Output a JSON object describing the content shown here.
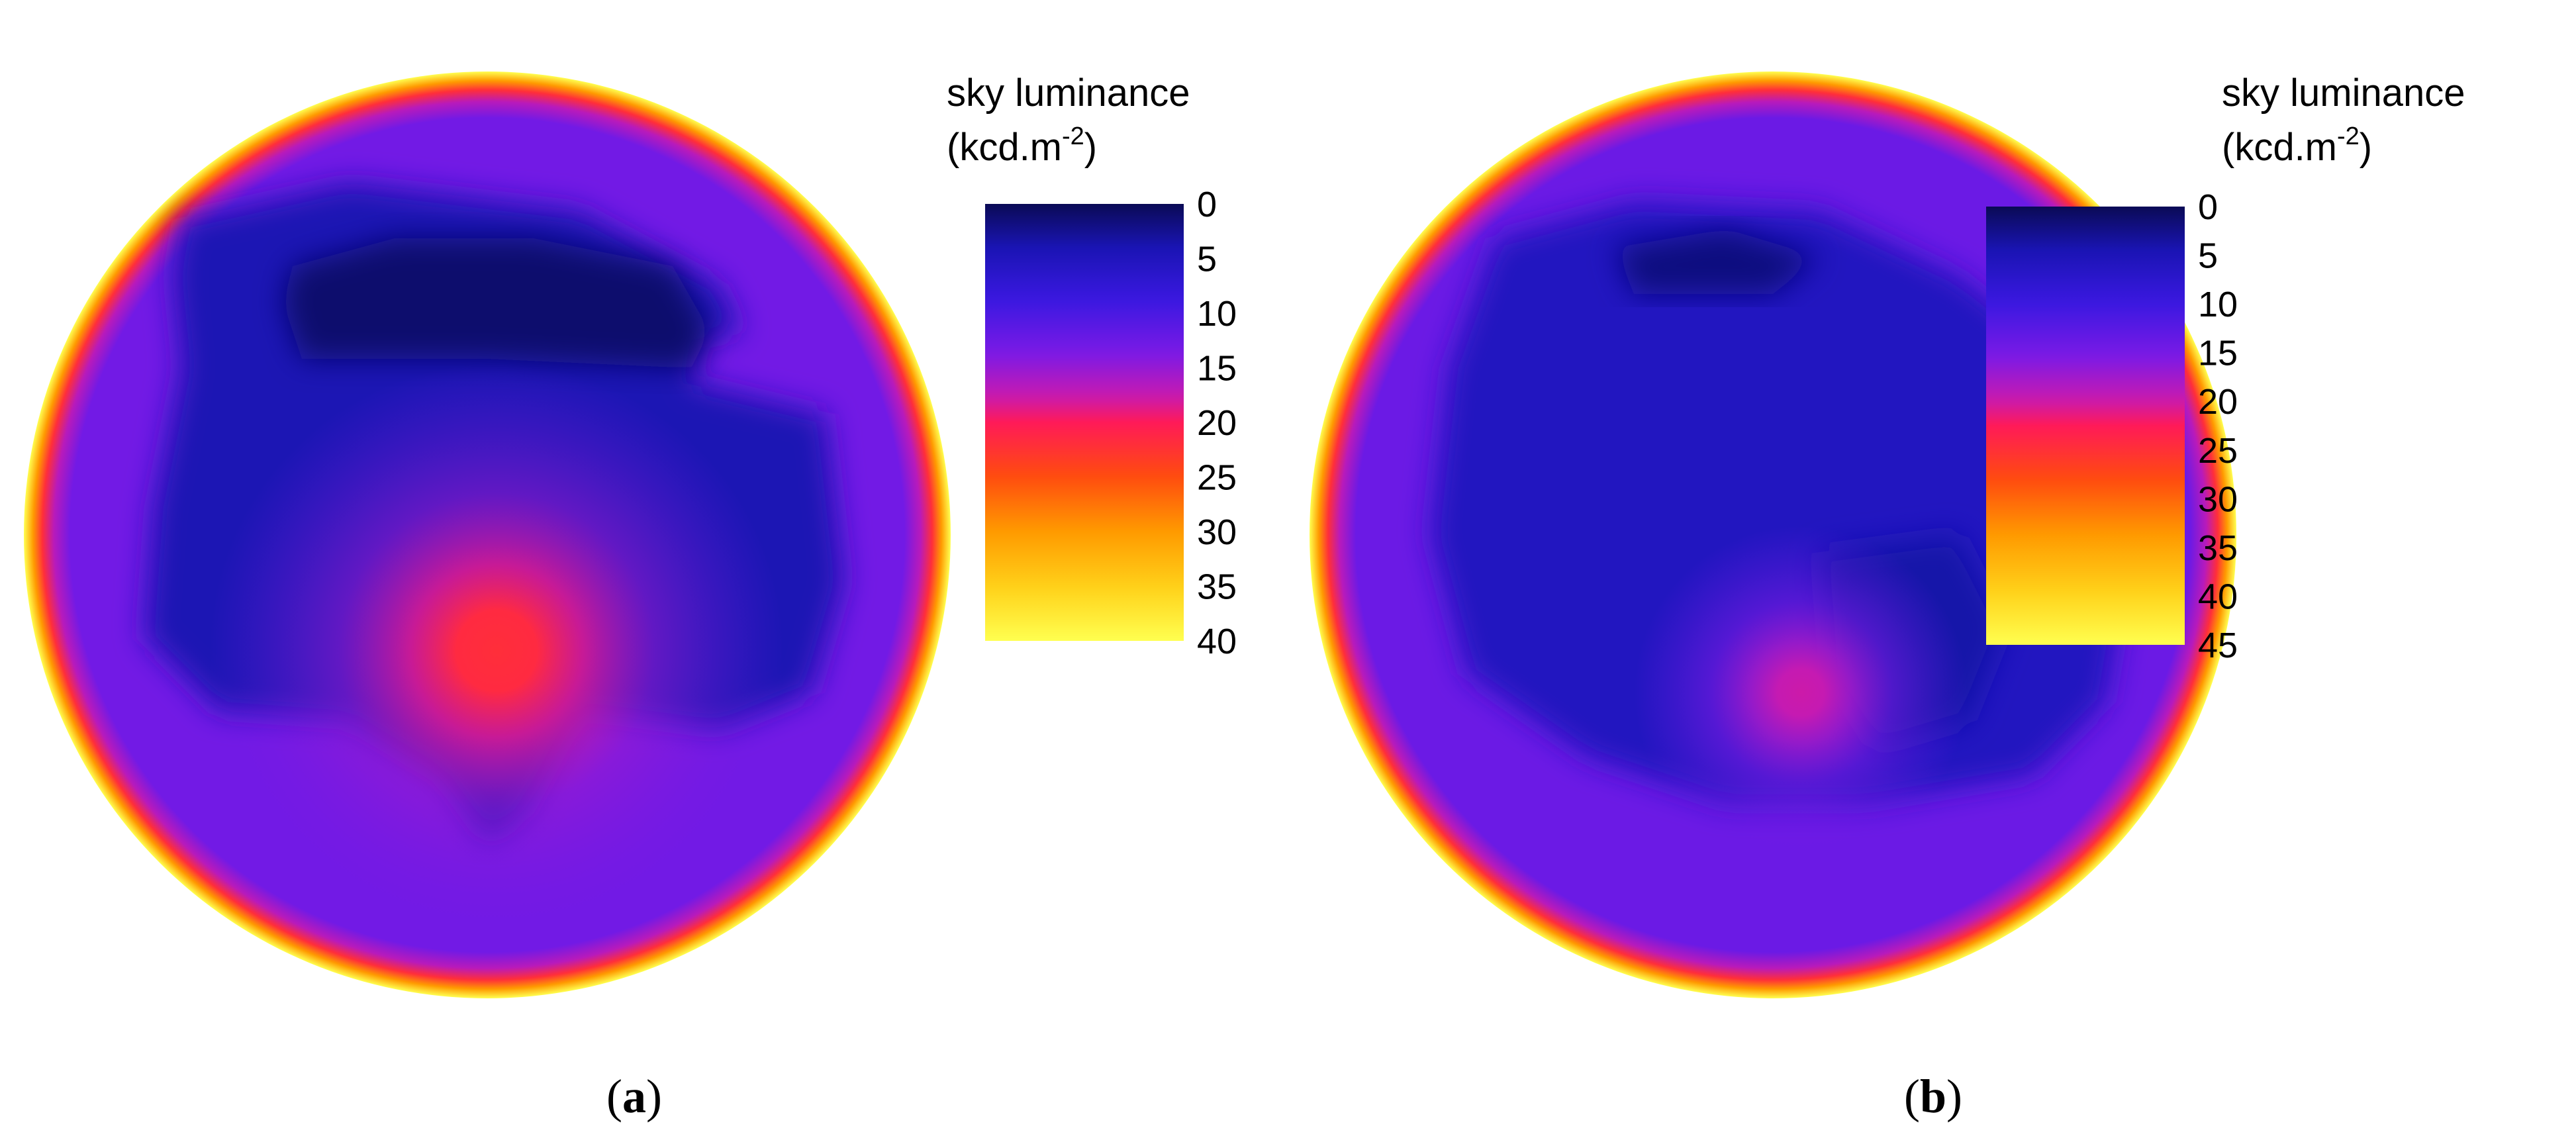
{
  "chart_data": [
    {
      "type": "heatmap",
      "panel_label": "a",
      "colorbar": {
        "title_line1": "sky luminance",
        "title_unit": "(kcd.m",
        "title_sup": "-2",
        "title_close": ")",
        "min": 0,
        "max": 40,
        "ticks": [
          "0",
          "5",
          "10",
          "15",
          "20",
          "25",
          "30",
          "35",
          "40"
        ]
      },
      "field": {
        "background_level": 13,
        "rim_level": 40,
        "dark_regions": [
          {
            "level": 4,
            "points": [
              [
                -0.66,
                -0.68
              ],
              [
                -0.3,
                -0.76
              ],
              [
                0.2,
                -0.7
              ],
              [
                0.5,
                -0.54
              ],
              [
                0.55,
                -0.44
              ],
              [
                0.46,
                -0.42
              ],
              [
                0.44,
                -0.33
              ],
              [
                0.73,
                -0.26
              ],
              [
                0.77,
                0.1
              ],
              [
                0.7,
                0.34
              ],
              [
                0.5,
                0.42
              ],
              [
                0.2,
                0.38
              ],
              [
                0.08,
                0.6
              ],
              [
                0.0,
                0.66
              ],
              [
                -0.1,
                0.52
              ],
              [
                -0.3,
                0.4
              ],
              [
                -0.58,
                0.38
              ],
              [
                -0.74,
                0.22
              ],
              [
                -0.72,
                -0.06
              ],
              [
                -0.66,
                -0.36
              ],
              [
                -0.68,
                -0.56
              ]
            ]
          },
          {
            "level": 1,
            "points": [
              [
                -0.42,
                -0.58
              ],
              [
                -0.2,
                -0.64
              ],
              [
                0.1,
                -0.64
              ],
              [
                0.4,
                -0.58
              ],
              [
                0.48,
                -0.44
              ],
              [
                0.44,
                -0.36
              ],
              [
                0.0,
                -0.38
              ],
              [
                -0.4,
                -0.38
              ],
              [
                -0.44,
                -0.5
              ]
            ]
          }
        ],
        "hotspot": {
          "cx": 0.02,
          "cy": 0.25,
          "radius": 0.62,
          "peak_level": 22
        }
      }
    },
    {
      "type": "heatmap",
      "panel_label": "b",
      "colorbar": {
        "title_line1": "sky luminance",
        "title_unit": "(kcd.m",
        "title_sup": "-2",
        "title_close": ")",
        "min": 0,
        "max": 45,
        "ticks": [
          "0",
          "5",
          "10",
          "15",
          "20",
          "25",
          "30",
          "35",
          "40",
          "45"
        ]
      },
      "field": {
        "background_level": 14,
        "rim_level": 45,
        "dark_regions": [
          {
            "level": 6,
            "points": [
              [
                -0.6,
                -0.64
              ],
              [
                -0.3,
                -0.72
              ],
              [
                0.1,
                -0.7
              ],
              [
                0.4,
                -0.56
              ],
              [
                0.68,
                -0.34
              ],
              [
                0.78,
                0.0
              ],
              [
                0.72,
                0.36
              ],
              [
                0.56,
                0.52
              ],
              [
                0.2,
                0.58
              ],
              [
                -0.1,
                0.58
              ],
              [
                -0.4,
                0.48
              ],
              [
                -0.66,
                0.3
              ],
              [
                -0.74,
                0.0
              ],
              [
                -0.7,
                -0.36
              ]
            ]
          },
          {
            "level": 2,
            "points": [
              [
                -0.34,
                -0.62
              ],
              [
                -0.1,
                -0.66
              ],
              [
                0.1,
                -0.6
              ],
              [
                0.0,
                -0.52
              ],
              [
                -0.3,
                -0.52
              ]
            ]
          },
          {
            "level": 4,
            "points": [
              [
                0.1,
                0.04
              ],
              [
                0.4,
                0.0
              ],
              [
                0.5,
                0.2
              ],
              [
                0.42,
                0.4
              ],
              [
                0.22,
                0.46
              ],
              [
                0.12,
                0.3
              ]
            ]
          }
        ],
        "hotspot": {
          "cx": 0.06,
          "cy": 0.34,
          "radius": 0.36,
          "peak_level": 20
        }
      }
    }
  ]
}
